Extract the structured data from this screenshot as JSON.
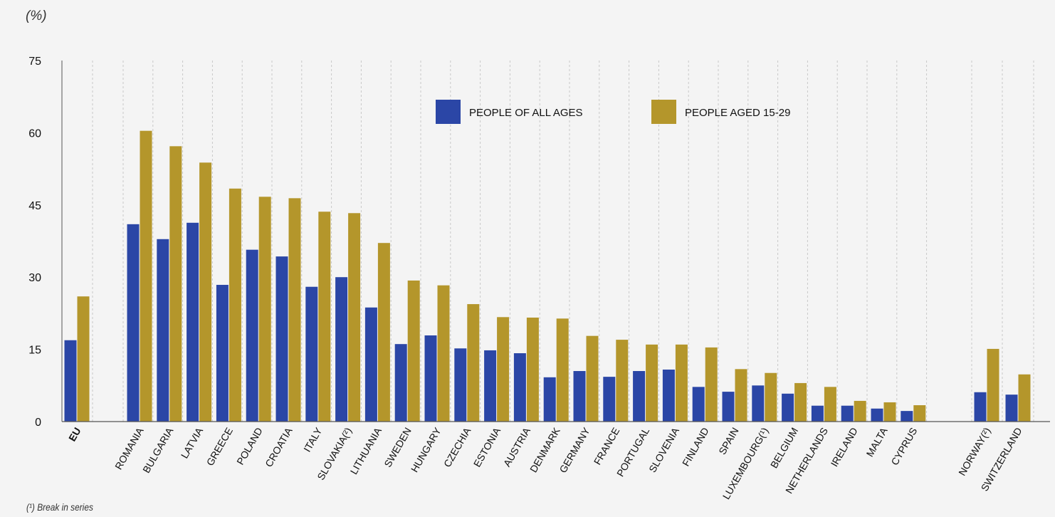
{
  "chart_data": {
    "type": "bar",
    "unit_label": "(%)",
    "footnote": "(¹) Break in series",
    "ylim": [
      0,
      75
    ],
    "yticks": [
      0,
      15,
      30,
      45,
      60,
      75
    ],
    "grid": "vertical dashed",
    "legend_placement": "top-center",
    "colors": {
      "all_ages": "#2b46a6",
      "aged_15_29": "#b4962b"
    },
    "categories": [
      "EU",
      "ROMANIA",
      "BULGARIA",
      "LATVIA",
      "GREECE",
      "POLAND",
      "CROATIA",
      "ITALY",
      "SLOVAKIA(²)",
      "LITHUANIA",
      "SWEDEN",
      "HUNGARY",
      "CZECHIA",
      "ESTONIA",
      "AUSTRIA",
      "DENMARK",
      "GERMANY",
      "FRANCE",
      "PORTUGAL",
      "SLOVENIA",
      "FINLAND",
      "SPAIN",
      "LUXEMBOURG(¹)",
      "BELGIUM",
      "NETHERLANDS",
      "IRELAND",
      "MALTA",
      "CYPRUS",
      "NORWAY(²)",
      "SWITZERLAND"
    ],
    "series": [
      {
        "name": "PEOPLE OF ALL AGES",
        "values": [
          16.9,
          41.0,
          37.9,
          41.3,
          28.4,
          35.7,
          34.3,
          28.0,
          30.0,
          23.7,
          16.1,
          17.9,
          15.2,
          14.8,
          14.2,
          9.2,
          10.5,
          9.3,
          10.5,
          10.8,
          7.2,
          6.2,
          7.5,
          5.8,
          3.3,
          3.3,
          2.7,
          2.2,
          6.1,
          5.6
        ]
      },
      {
        "name": "PEOPLE AGED 15-29",
        "values": [
          26.0,
          60.4,
          57.2,
          53.8,
          48.4,
          46.7,
          46.4,
          43.6,
          43.3,
          37.1,
          29.3,
          28.3,
          24.4,
          21.7,
          21.6,
          21.4,
          17.8,
          17.0,
          16.0,
          16.0,
          15.4,
          10.9,
          10.1,
          8.0,
          7.2,
          4.3,
          4.0,
          3.4,
          15.1,
          9.8
        ]
      }
    ]
  }
}
